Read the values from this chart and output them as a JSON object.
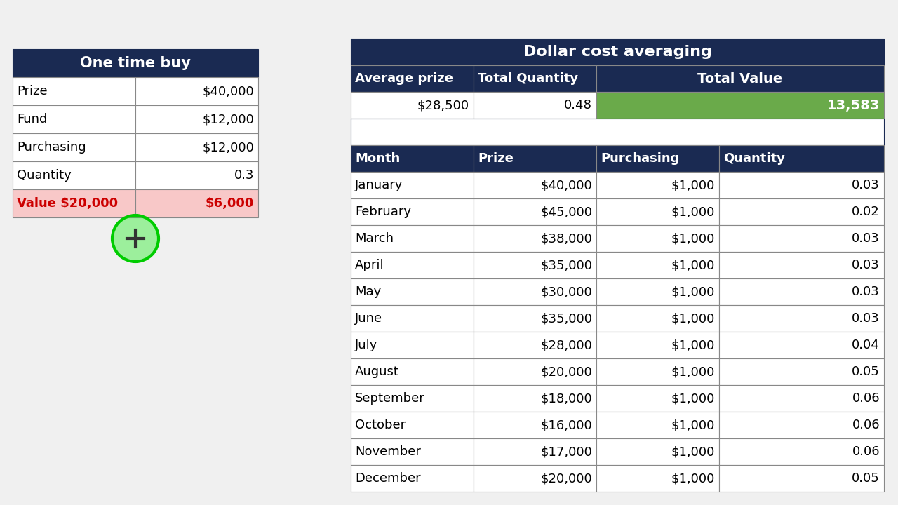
{
  "bg_color": "#f0f0f0",
  "header_dark": "#1a2a52",
  "header_text_color": "#ffffff",
  "cell_bg": "#ffffff",
  "cell_border": "#888888",
  "pink_bg": "#f8c8c8",
  "pink_text": "#cc0000",
  "green_bg": "#6aaa4a",
  "green_text": "#ffffff",
  "otb_title": "One time buy",
  "otb_rows": [
    [
      "Prize",
      "$40,000"
    ],
    [
      "Fund",
      "$12,000"
    ],
    [
      "Purchasing",
      "$12,000"
    ],
    [
      "Quantity",
      "0.3"
    ],
    [
      "Value $20,000",
      "$6,000"
    ]
  ],
  "dca_title": "Dollar cost averaging",
  "dca_summary_headers": [
    "Average prize",
    "Total Quantity",
    "Total Value"
  ],
  "dca_summary_values": [
    "$28,500",
    "0.48",
    "13,583"
  ],
  "dca_col_headers": [
    "Month",
    "Prize",
    "Purchasing",
    "Quantity"
  ],
  "dca_rows": [
    [
      "January",
      "$40,000",
      "$1,000",
      "0.03"
    ],
    [
      "February",
      "$45,000",
      "$1,000",
      "0.02"
    ],
    [
      "March",
      "$38,000",
      "$1,000",
      "0.03"
    ],
    [
      "April",
      "$35,000",
      "$1,000",
      "0.03"
    ],
    [
      "May",
      "$30,000",
      "$1,000",
      "0.03"
    ],
    [
      "June",
      "$35,000",
      "$1,000",
      "0.03"
    ],
    [
      "July",
      "$28,000",
      "$1,000",
      "0.04"
    ],
    [
      "August",
      "$20,000",
      "$1,000",
      "0.05"
    ],
    [
      "September",
      "$18,000",
      "$1,000",
      "0.06"
    ],
    [
      "October",
      "$16,000",
      "$1,000",
      "0.06"
    ],
    [
      "November",
      "$17,000",
      "$1,000",
      "0.06"
    ],
    [
      "December",
      "$20,000",
      "$1,000",
      "0.05"
    ]
  ]
}
